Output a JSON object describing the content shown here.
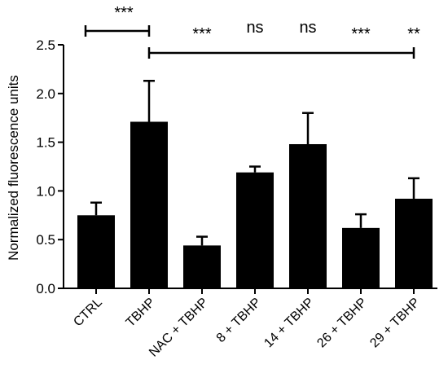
{
  "chart_data": {
    "type": "bar",
    "categories": [
      "CTRL",
      "TBHP",
      "NAC + TBHP",
      "8 + TBHP",
      "14 + TBHP",
      "26 + TBHP",
      "29 + TBHP"
    ],
    "values": [
      0.75,
      1.71,
      0.44,
      1.19,
      1.48,
      0.62,
      0.92
    ],
    "errors": [
      0.13,
      0.42,
      0.09,
      0.06,
      0.32,
      0.14,
      0.21
    ],
    "ylabel": "Normalized fluorescence units",
    "xlabel": "",
    "ylim": [
      0,
      2.5
    ],
    "yticks": [
      "0.0",
      "0.5",
      "1.0",
      "1.5",
      "2.0",
      "2.5"
    ],
    "grid": false,
    "bar_color": "#000000",
    "significance": {
      "ctrl_vs_tbhp": "***",
      "vs_tbhp": [
        "***",
        "ns",
        "ns",
        "***",
        "**"
      ]
    }
  }
}
